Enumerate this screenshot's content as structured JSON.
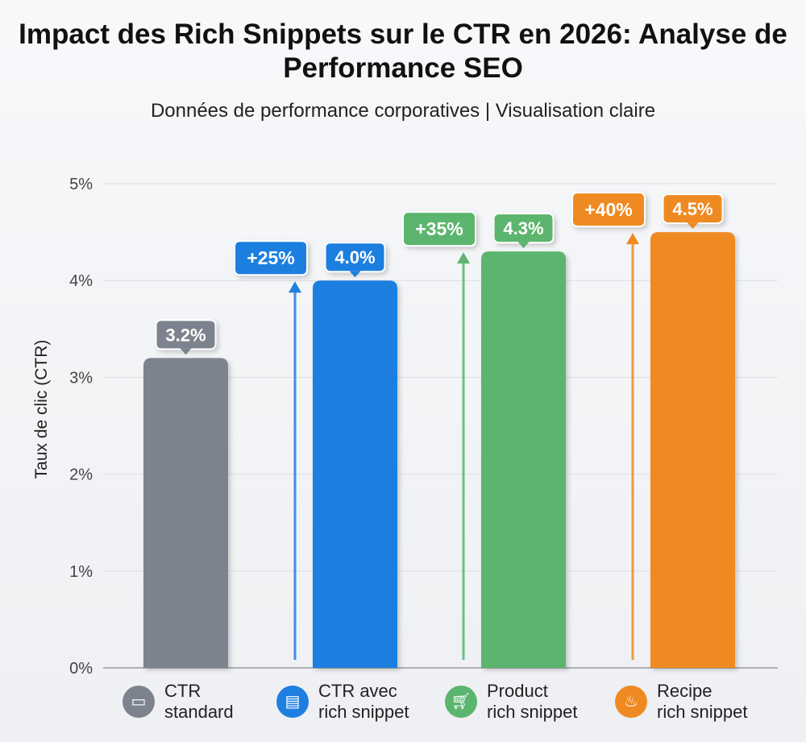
{
  "chart_data": {
    "type": "bar",
    "title": "Impact des Rich Snippets sur le CTR en 2026: Analyse de Performance SEO",
    "subtitle": "Données de performance corporatives | Visualisation claire",
    "ylabel": "Taux de clic (CTR)",
    "xlabel": "",
    "ylim": [
      0,
      5
    ],
    "yticks": [
      "0%",
      "1%",
      "2%",
      "3%",
      "4%",
      "5%"
    ],
    "grid": true,
    "legend_position": "bottom",
    "categories": [
      "CTR standard",
      "CTR avec rich snippet",
      "Product rich snippet",
      "Recipe rich snippet"
    ],
    "values": [
      3.2,
      4.0,
      4.3,
      4.5
    ],
    "data_labels": [
      "3.2%",
      "4.0%",
      "4.3%",
      "4.5%"
    ],
    "uplift_labels": [
      "",
      "+25%",
      "+35%",
      "+40%"
    ],
    "colors": [
      "#7d838e",
      "#1f7fe0",
      "#5bb56e",
      "#ef8a22"
    ],
    "legend": [
      {
        "line1": "CTR",
        "line2": "standard",
        "icon": "browser-cursor-icon"
      },
      {
        "line1": "CTR avec",
        "line2": "rich snippet",
        "icon": "rich-result-page-icon"
      },
      {
        "line1": "Product",
        "line2": "rich snippet",
        "icon": "shopping-cart-icon"
      },
      {
        "line1": "Recipe",
        "line2": "rich snippet",
        "icon": "cooking-pot-icon"
      }
    ]
  }
}
